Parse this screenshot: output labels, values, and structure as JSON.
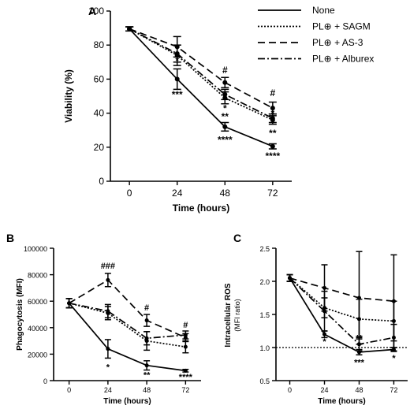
{
  "legend": {
    "entries": [
      {
        "label": "None",
        "dash": ""
      },
      {
        "label": "PL⊕ + SAGM",
        "dash": "2,2"
      },
      {
        "label": "PL⊕ + AS-3",
        "dash": "9,5"
      },
      {
        "label": "PL⊕ + Alburex",
        "dash": "9,3,2,3"
      }
    ]
  },
  "chart_data": [
    {
      "panel": "A",
      "type": "line",
      "xlabel": "Time (hours)",
      "ylabel": "Viability (%)",
      "x": [
        0,
        24,
        48,
        72
      ],
      "xticks": [
        "0",
        "24",
        "48",
        "72"
      ],
      "ylim": [
        0,
        100
      ],
      "yticks": [
        "0",
        "20",
        "40",
        "60",
        "80",
        "100"
      ],
      "series": [
        {
          "name": "None",
          "dash": "",
          "values": [
            89.5,
            60,
            32,
            20.5
          ],
          "err": [
            1.2,
            6,
            2.5,
            1.5
          ]
        },
        {
          "name": "PL⊕ + SAGM",
          "dash": "2,2",
          "values": [
            89.5,
            74,
            49,
            36
          ],
          "err": [
            1.2,
            6,
            3.5,
            2.5
          ]
        },
        {
          "name": "PL⊕ + AS-3",
          "dash": "9,5",
          "values": [
            89.5,
            79,
            58,
            43
          ],
          "err": [
            1.2,
            6,
            3,
            3.5
          ]
        },
        {
          "name": "PL⊕ + Alburex",
          "dash": "9,3,2,3",
          "values": [
            89.5,
            75,
            51,
            37
          ],
          "err": [
            1.2,
            5,
            3,
            2.5
          ]
        }
      ],
      "annotations": [
        {
          "x": 24,
          "y": 69,
          "text": "*"
        },
        {
          "x": 24,
          "y": 49,
          "text": "***"
        },
        {
          "x": 48,
          "y": 63.5,
          "text": "#"
        },
        {
          "x": 48,
          "y": 41,
          "text": "*"
        },
        {
          "x": 48,
          "y": 36,
          "text": "**"
        },
        {
          "x": 48,
          "y": 22.5,
          "text": "****"
        },
        {
          "x": 72,
          "y": 50,
          "text": "#"
        },
        {
          "x": 72,
          "y": 38,
          "text": "*"
        },
        {
          "x": 72,
          "y": 26.5,
          "text": "**"
        },
        {
          "x": 72,
          "y": 13,
          "text": "****"
        }
      ]
    },
    {
      "panel": "B",
      "type": "line",
      "xlabel": "Time (hours)",
      "ylabel": "Phagocytosis (MFI)",
      "x": [
        0,
        24,
        48,
        72
      ],
      "xticks": [
        "0",
        "24",
        "48",
        "72"
      ],
      "ylim": [
        0,
        100000
      ],
      "yticks": [
        "0",
        "20000",
        "40000",
        "60000",
        "80000",
        "100000"
      ],
      "series": [
        {
          "name": "None",
          "dash": "",
          "values": [
            58500,
            24000,
            11500,
            7500
          ],
          "err": [
            3500,
            7000,
            3500,
            1000
          ]
        },
        {
          "name": "PL⊕ + SAGM",
          "dash": "2,2",
          "values": [
            58500,
            51000,
            30000,
            25500
          ],
          "err": [
            3500,
            5000,
            7000,
            4500
          ]
        },
        {
          "name": "PL⊕ + AS-3",
          "dash": "9,5",
          "values": [
            58500,
            76000,
            45500,
            32500
          ],
          "err": [
            3500,
            5000,
            4500,
            3000
          ]
        },
        {
          "name": "PL⊕ + Alburex",
          "dash": "9,3,2,3",
          "values": [
            58500,
            52500,
            32000,
            34500
          ],
          "err": [
            3500,
            5000,
            5000,
            3000
          ]
        }
      ],
      "annotations": [
        {
          "x": 24,
          "y": 84500,
          "text": "###"
        },
        {
          "x": 24,
          "y": 8000,
          "text": "*"
        },
        {
          "x": 48,
          "y": 53000,
          "text": "#"
        },
        {
          "x": 48,
          "y": 2000,
          "text": "**"
        },
        {
          "x": 72,
          "y": 40000,
          "text": "#"
        },
        {
          "x": 72,
          "y": 500,
          "text": "****"
        }
      ]
    },
    {
      "panel": "C",
      "type": "line",
      "xlabel": "Time (hours)",
      "ylabel": "Intracellular ROS",
      "ylabel2": "(MFI ratio)",
      "x": [
        0,
        24,
        48,
        72
      ],
      "xticks": [
        "0",
        "24",
        "48",
        "72"
      ],
      "ylim": [
        0.5,
        2.5
      ],
      "yticks": [
        "0.5",
        "1.0",
        "1.5",
        "2.0",
        "2.5"
      ],
      "reference_line": 1.0,
      "series": [
        {
          "name": "None",
          "dash": "",
          "values": [
            2.05,
            1.2,
            0.93,
            0.97
          ],
          "err": [
            0.05,
            0.05,
            0.04,
            0.03
          ]
        },
        {
          "name": "PL⊕ + SAGM",
          "dash": "2,2",
          "values": [
            2.05,
            1.6,
            1.43,
            1.4
          ],
          "err": [
            0.05,
            0.15,
            0.3,
            0.3
          ]
        },
        {
          "name": "PL⊕ + AS-3",
          "dash": "9,5",
          "values": [
            2.05,
            1.9,
            1.75,
            1.7
          ],
          "err": [
            0.05,
            0.35,
            0.7,
            0.7
          ]
        },
        {
          "name": "PL⊕ + Alburex",
          "dash": "9,3,2,3",
          "values": [
            2.05,
            1.55,
            1.05,
            1.15
          ],
          "err": [
            0.05,
            0.3,
            0.1,
            0.2
          ]
        }
      ],
      "annotations": [
        {
          "x": 24,
          "y": 1.05,
          "text": "*"
        },
        {
          "x": 48,
          "y": 1.1,
          "text": "**"
        },
        {
          "x": 48,
          "y": 0.73,
          "text": "***"
        },
        {
          "x": 72,
          "y": 0.8,
          "text": "*"
        }
      ]
    }
  ]
}
